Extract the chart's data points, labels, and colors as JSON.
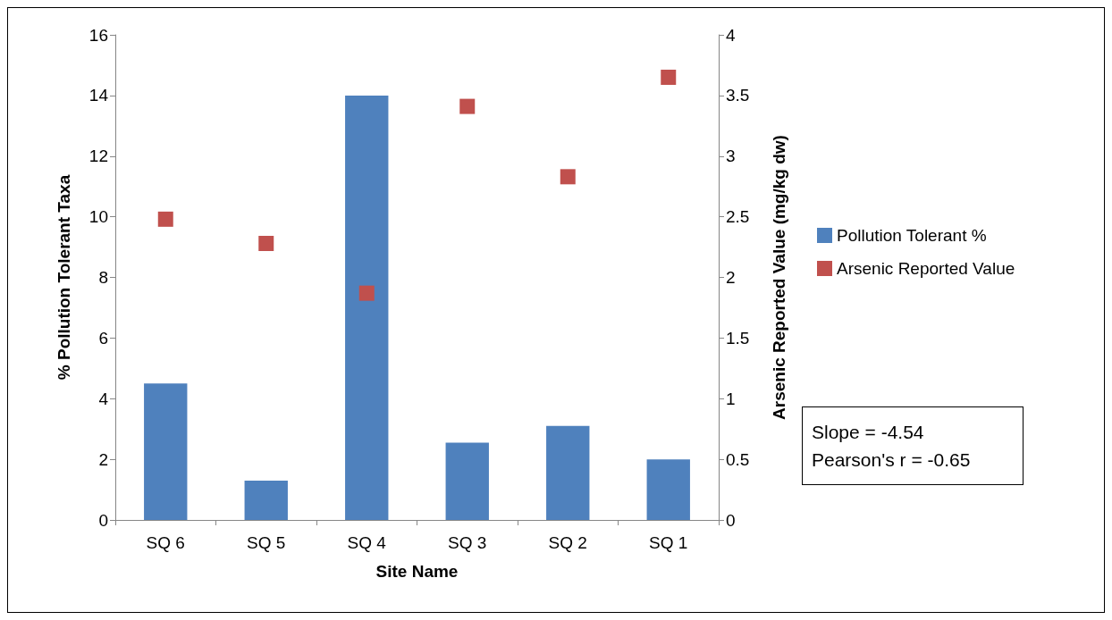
{
  "chart_data": {
    "type": "bar",
    "xlabel": "Site Name",
    "ylabel": "% Pollution Tolerant Taxa",
    "y2label": "Arsenic Reported Value (mg/kg dw)",
    "categories": [
      "SQ 6",
      "SQ 5",
      "SQ 4",
      "SQ 3",
      "SQ 2",
      "SQ 1"
    ],
    "series": [
      {
        "name": "Pollution Tolerant %",
        "color": "#4f81bd",
        "values": [
          4.5,
          1.3,
          14,
          2.55,
          3.1,
          2
        ]
      },
      {
        "name": "Arsenic Reported Value",
        "type": "scatter",
        "axis": "y2",
        "marker": "square",
        "color": "#c0504d",
        "x": [
          "SQ 6",
          "SQ 5",
          "SQ 4",
          "SQ 3",
          "SQ 2",
          "SQ 1"
        ],
        "values": [
          2.48,
          2.28,
          1.87,
          3.41,
          2.83,
          3.65
        ]
      }
    ],
    "ylim": [
      0,
      16
    ],
    "yticks": [
      0,
      2,
      4,
      6,
      8,
      10,
      12,
      14,
      16
    ],
    "y2lim": [
      0,
      4
    ],
    "y2ticks": [
      0,
      0.5,
      1,
      1.5,
      2,
      2.5,
      3,
      3.5,
      4
    ],
    "grid": false,
    "legend": "right",
    "annotations": [
      "Slope = -4.54",
      "Pearson's r = -0.65"
    ]
  }
}
